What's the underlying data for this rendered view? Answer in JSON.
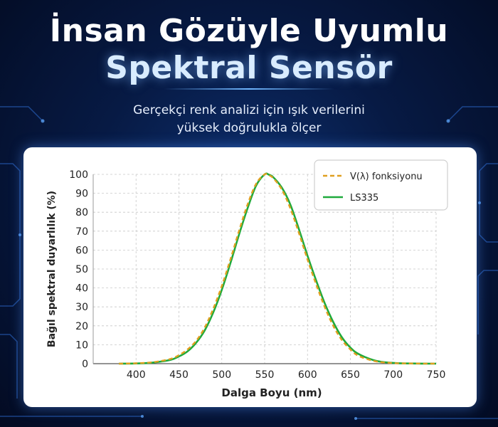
{
  "header": {
    "title_line1": "İnsan Gözüyle Uyumlu",
    "title_line2": "Spektral Sensör",
    "subtitle_line1": "Gerçekçi renk analizi için ışık verilerini",
    "subtitle_line2": "yüksek doğrulukla ölçer"
  },
  "colors": {
    "v_lambda": "#e0a020",
    "ls335": "#1faa3c",
    "grid": "#c8c8c8"
  },
  "chart_data": {
    "type": "line",
    "xlabel": "Dalga Boyu (nm)",
    "ylabel": "Bağıl spektral duyarlılık (%)",
    "xlim": [
      350,
      750
    ],
    "ylim": [
      0,
      100
    ],
    "xticks": [
      400,
      450,
      500,
      550,
      600,
      650,
      700,
      750
    ],
    "yticks": [
      0,
      10,
      20,
      30,
      40,
      50,
      60,
      70,
      80,
      90,
      100
    ],
    "grid": true,
    "legend_position": "top-right",
    "series": [
      {
        "name": "V(λ) fonksiyonu",
        "style": "dashed",
        "x": [
          380,
          400,
          420,
          440,
          450,
          460,
          470,
          480,
          490,
          500,
          510,
          520,
          530,
          540,
          550,
          555,
          560,
          570,
          580,
          590,
          600,
          610,
          620,
          630,
          640,
          650,
          660,
          680,
          700,
          720,
          750
        ],
        "y": [
          0,
          0.2,
          0.8,
          2.5,
          4.5,
          7.5,
          12,
          19,
          29,
          41,
          55,
          70,
          84,
          95,
          100,
          99.5,
          98,
          92,
          82,
          69,
          55,
          42,
          30,
          20,
          12.5,
          7.5,
          4,
          1.2,
          0.3,
          0.1,
          0
        ]
      },
      {
        "name": "LS335",
        "style": "solid",
        "x": [
          380,
          400,
          420,
          440,
          450,
          460,
          470,
          480,
          490,
          500,
          510,
          520,
          530,
          540,
          550,
          555,
          560,
          570,
          580,
          590,
          600,
          610,
          620,
          630,
          640,
          650,
          660,
          680,
          700,
          720,
          750
        ],
        "y": [
          0,
          0.1,
          0.6,
          2,
          3.8,
          6.5,
          11,
          17.5,
          27,
          39,
          53,
          68,
          82,
          94,
          100,
          99.8,
          98.5,
          93,
          84,
          71,
          57,
          44,
          32,
          22,
          14,
          8.5,
          5,
          1.5,
          0.4,
          0.1,
          0
        ]
      }
    ]
  }
}
